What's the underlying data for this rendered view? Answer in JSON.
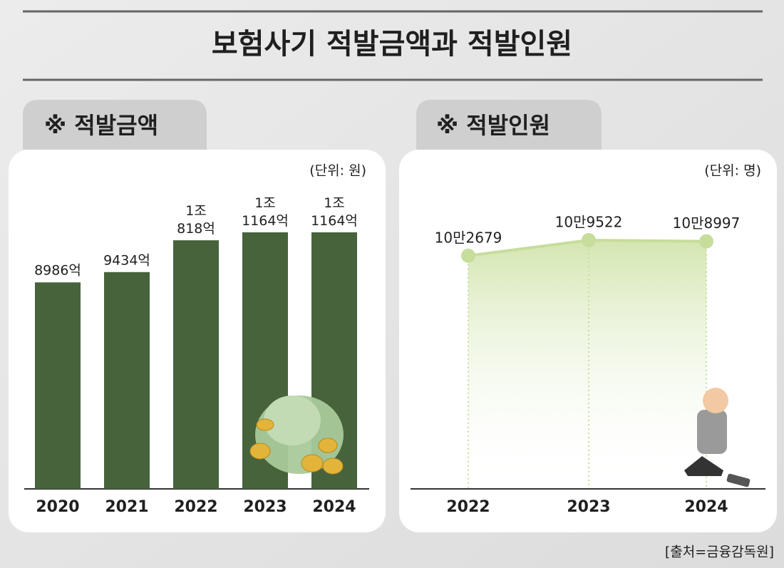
{
  "title": "보험사기 적발금액과 적발인원",
  "source": "[출처=금융감독원]",
  "chart_data": [
    {
      "type": "bar",
      "title": "※ 적발금액",
      "unit_note": "(단위: 원)",
      "categories": [
        "2020",
        "2021",
        "2022",
        "2023",
        "2024"
      ],
      "values": [
        8986,
        9434,
        10818,
        11164,
        11164
      ],
      "value_labels": [
        "8986억",
        "9434억",
        "1조 818억",
        "1조 1164억",
        "1조 1164억"
      ],
      "color": "#46633c"
    },
    {
      "type": "line",
      "title": "※ 적발인원",
      "unit_note": "(단위: 명)",
      "categories": [
        "2022",
        "2023",
        "2024"
      ],
      "values": [
        102679,
        109522,
        108997
      ],
      "value_labels": [
        "10만2679",
        "10만9522",
        "10만8997"
      ],
      "color": "#c6dd9c"
    }
  ]
}
